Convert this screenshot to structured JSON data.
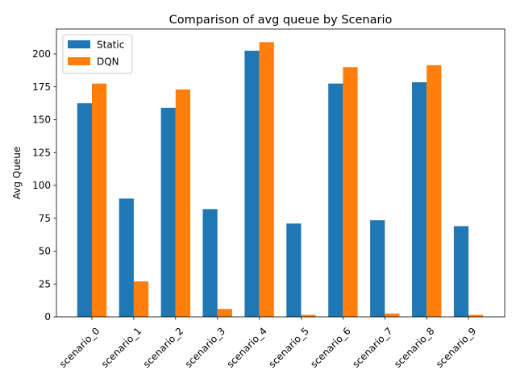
{
  "chart_data": {
    "type": "bar",
    "title": "Comparison of avg queue by Scenario",
    "xlabel": "",
    "ylabel": "Avg Queue",
    "categories": [
      "scenario_0",
      "scenario_1",
      "scenario_2",
      "scenario_3",
      "scenario_4",
      "scenario_5",
      "scenario_6",
      "scenario_7",
      "scenario_8",
      "scenario_9"
    ],
    "series": [
      {
        "name": "Static",
        "color": "#1f77b4",
        "values": [
          162.5,
          90,
          159,
          82,
          202.5,
          71,
          177.5,
          73.5,
          178.5,
          69
        ]
      },
      {
        "name": "DQN",
        "color": "#ff7f0e",
        "values": [
          177.5,
          27,
          173,
          6,
          209,
          1.5,
          190,
          2.5,
          191.5,
          1.5
        ]
      }
    ],
    "ylim": [
      0,
      219
    ],
    "yticks": [
      0,
      25,
      50,
      75,
      100,
      125,
      150,
      175,
      200
    ],
    "grid": false,
    "legend_position": "top-left"
  }
}
